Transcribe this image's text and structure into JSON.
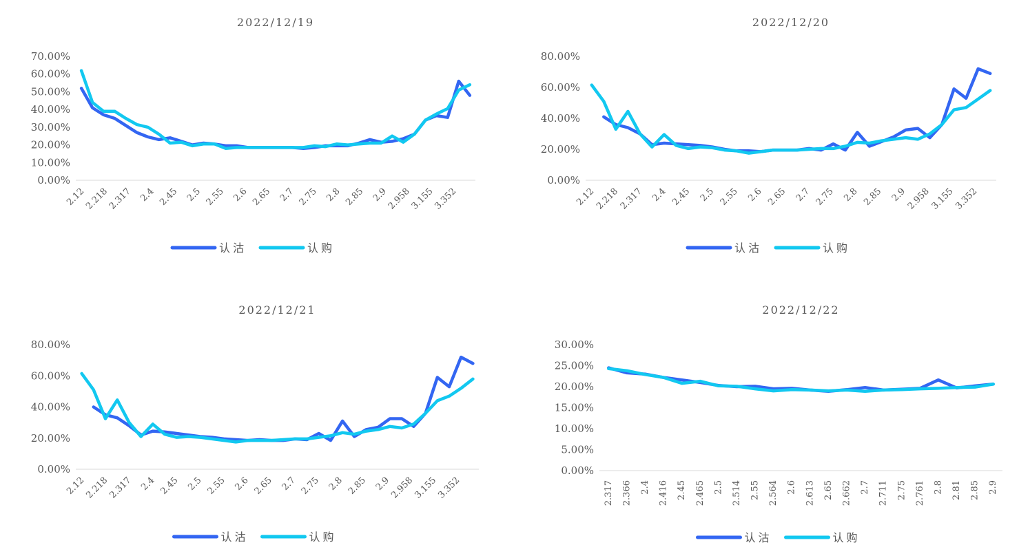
{
  "colors": {
    "put": "#3366F2",
    "call": "#12C8F0",
    "axis": "#D9D9D9",
    "text": "#595959"
  },
  "legend": {
    "put_label": "认沽",
    "call_label": "认购"
  },
  "chart_data": [
    {
      "type": "line",
      "title": "2022/12/19",
      "yticks": [
        "0.00%",
        "10.00%",
        "20.00%",
        "30.00%",
        "40.00%",
        "50.00%",
        "60.00%",
        "70.00%"
      ],
      "ylim": [
        0,
        70
      ],
      "xtick_labels": [
        "2.12",
        "2.218",
        "2.317",
        "2.4",
        "2.45",
        "2.5",
        "2.55",
        "2.6",
        "2.65",
        "2.7",
        "2.75",
        "2.8",
        "2.85",
        "2.9",
        "2.958",
        "3.155",
        "3.352"
      ],
      "series": [
        {
          "name": "认沽",
          "values": [
            52,
            41,
            37,
            35,
            31,
            27,
            24.5,
            23,
            24,
            22,
            20,
            21,
            20.5,
            19.5,
            19.5,
            18.5,
            18.5,
            18.5,
            18.5,
            18.5,
            18,
            18.5,
            19.5,
            19.5,
            19.5,
            21,
            23,
            21.5,
            22,
            23.5,
            26,
            34,
            36.5,
            35.5,
            56,
            48
          ]
        },
        {
          "name": "认购",
          "values": [
            62,
            44,
            39,
            39,
            35,
            31.5,
            30,
            26,
            21,
            21.5,
            19.5,
            20.5,
            20.5,
            18,
            18.5,
            18.5,
            18.5,
            18.5,
            18.5,
            18.5,
            18.5,
            19.5,
            19,
            20.5,
            20,
            20.5,
            21,
            21,
            25,
            21.5,
            26,
            34,
            37.5,
            40.5,
            51,
            54
          ]
        }
      ]
    },
    {
      "type": "line",
      "title": "2022/12/20",
      "yticks": [
        "0.00%",
        "20.00%",
        "40.00%",
        "60.00%",
        "80.00%"
      ],
      "ylim": [
        0,
        80
      ],
      "xtick_labels": [
        "2.12",
        "2.218",
        "2.317",
        "2.4",
        "2.45",
        "2.5",
        "2.55",
        "2.6",
        "2.65",
        "2.7",
        "2.75",
        "2.8",
        "2.85",
        "2.9",
        "2.958",
        "3.155",
        "3.352"
      ],
      "series": [
        {
          "name": "认沽",
          "values": [
            null,
            41,
            36,
            34,
            30,
            23,
            24,
            23.5,
            23,
            22.5,
            21.5,
            20,
            19,
            19,
            18.5,
            19.5,
            19.5,
            19.5,
            20.5,
            19.5,
            23.5,
            19.5,
            31,
            22,
            25,
            28,
            32.5,
            33.5,
            27.5,
            36,
            59,
            53,
            72,
            69
          ]
        },
        {
          "name": "认购",
          "values": [
            61.5,
            51,
            33,
            44.5,
            30,
            21.5,
            29.5,
            22.5,
            20.5,
            21.5,
            21,
            19.5,
            19,
            17.5,
            18.5,
            19.5,
            19.5,
            19.5,
            20,
            20.5,
            20.5,
            22,
            24.5,
            24,
            25.5,
            26.5,
            27.5,
            26.5,
            30,
            36,
            45.5,
            47,
            52.5,
            58
          ]
        }
      ]
    },
    {
      "type": "line",
      "title": "2022/12/21",
      "yticks": [
        "0.00%",
        "20.00%",
        "40.00%",
        "60.00%",
        "80.00%"
      ],
      "ylim": [
        0,
        80
      ],
      "xtick_labels": [
        "2.12",
        "2.218",
        "2.317",
        "2.4",
        "2.45",
        "2.5",
        "2.55",
        "2.6",
        "2.65",
        "2.7",
        "2.75",
        "2.8",
        "2.85",
        "2.9",
        "2.958",
        "3.155",
        "3.352"
      ],
      "series": [
        {
          "name": "认沽",
          "values": [
            null,
            40,
            35,
            33,
            28,
            22,
            24.5,
            24,
            23,
            22,
            21,
            20.5,
            19.5,
            19,
            18.5,
            19,
            18.5,
            18.5,
            19.5,
            19,
            23,
            18.5,
            31,
            21,
            25.5,
            27,
            32.5,
            32.5,
            27.5,
            36,
            59,
            53,
            72,
            68
          ]
        },
        {
          "name": "认购",
          "values": [
            61.5,
            51,
            32.5,
            44.5,
            30,
            21,
            29,
            22.5,
            20.5,
            21,
            20.5,
            19.5,
            18.5,
            17.5,
            18.5,
            18.5,
            18.5,
            19,
            19.5,
            19.5,
            20.5,
            21.5,
            23.5,
            22.5,
            24.5,
            25.5,
            27.5,
            26.5,
            29,
            36,
            44,
            47,
            52,
            58
          ]
        }
      ]
    },
    {
      "type": "line",
      "title": "2022/12/22",
      "yticks": [
        "0.00%",
        "5.00%",
        "10.00%",
        "15.00%",
        "20.00%",
        "25.00%",
        "30.00%"
      ],
      "ylim": [
        0,
        30
      ],
      "xtick_labels": [
        "2.317",
        "2.366",
        "2.4",
        "2.416",
        "2.45",
        "2.465",
        "2.5",
        "2.514",
        "2.55",
        "2.564",
        "2.6",
        "2.613",
        "2.65",
        "2.662",
        "2.7",
        "2.711",
        "2.75",
        "2.761",
        "2.8",
        "2.81",
        "2.85",
        "2.9"
      ],
      "series": [
        {
          "name": "认沽",
          "values": [
            24.5,
            23.3,
            23,
            22.2,
            21.6,
            21,
            20.3,
            20,
            20.1,
            19.5,
            19.6,
            19.2,
            18.9,
            19.3,
            19.8,
            19.2,
            19.4,
            19.6,
            21.6,
            19.7,
            20.2,
            20.6
          ]
        },
        {
          "name": "认购",
          "values": [
            24.3,
            23.8,
            22.9,
            22.2,
            20.8,
            21.3,
            20.2,
            20.1,
            19.5,
            19,
            19.3,
            19.2,
            19,
            19.2,
            18.9,
            19.2,
            19.3,
            19.5,
            19.6,
            19.8,
            19.9,
            20.6
          ]
        }
      ]
    }
  ]
}
